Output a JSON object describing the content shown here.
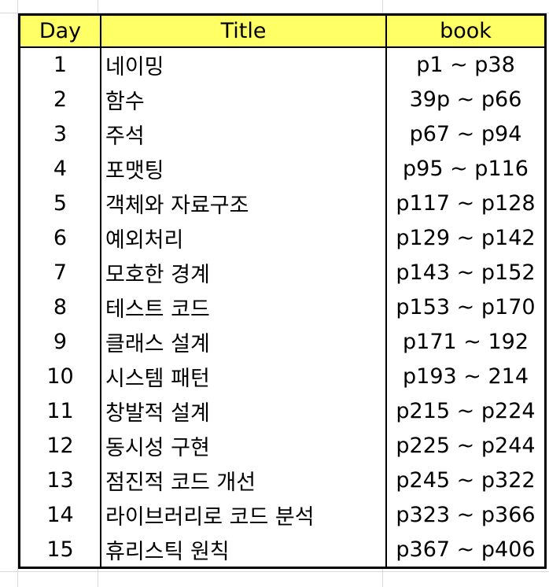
{
  "sheet": {
    "header": {
      "day": "Day",
      "title": "Title",
      "book": "book",
      "header_bg": "#ffff66"
    },
    "rows": [
      {
        "day": "1",
        "title": "네이밍",
        "book": "p1 ~ p38"
      },
      {
        "day": "2",
        "title": "함수",
        "book": "39p ~ p66"
      },
      {
        "day": "3",
        "title": "주석",
        "book": "p67 ~ p94"
      },
      {
        "day": "4",
        "title": "포맷팅",
        "book": "p95 ~ p116"
      },
      {
        "day": "5",
        "title": "객체와 자료구조",
        "book": "p117 ~ p128"
      },
      {
        "day": "6",
        "title": "예외처리",
        "book": "p129 ~ p142"
      },
      {
        "day": "7",
        "title": "모호한 경계",
        "book": "p143 ~ p152"
      },
      {
        "day": "8",
        "title": "테스트 코드",
        "book": "p153 ~ p170"
      },
      {
        "day": "9",
        "title": "클래스 설계",
        "book": "p171 ~ 192"
      },
      {
        "day": "10",
        "title": "시스템 패턴",
        "book": "p193 ~ 214"
      },
      {
        "day": "11",
        "title": "창발적 설계",
        "book": "p215 ~ p224"
      },
      {
        "day": "12",
        "title": "동시성 구현",
        "book": "p225 ~ p244"
      },
      {
        "day": "13",
        "title": "점진적 코드 개선",
        "book": "p245 ~ p322"
      },
      {
        "day": "14",
        "title": "라이브러리로 코드 분석",
        "book": "p323 ~ p366"
      },
      {
        "day": "15",
        "title": "휴리스틱 원칙",
        "book": "p367 ~ p406"
      }
    ]
  }
}
